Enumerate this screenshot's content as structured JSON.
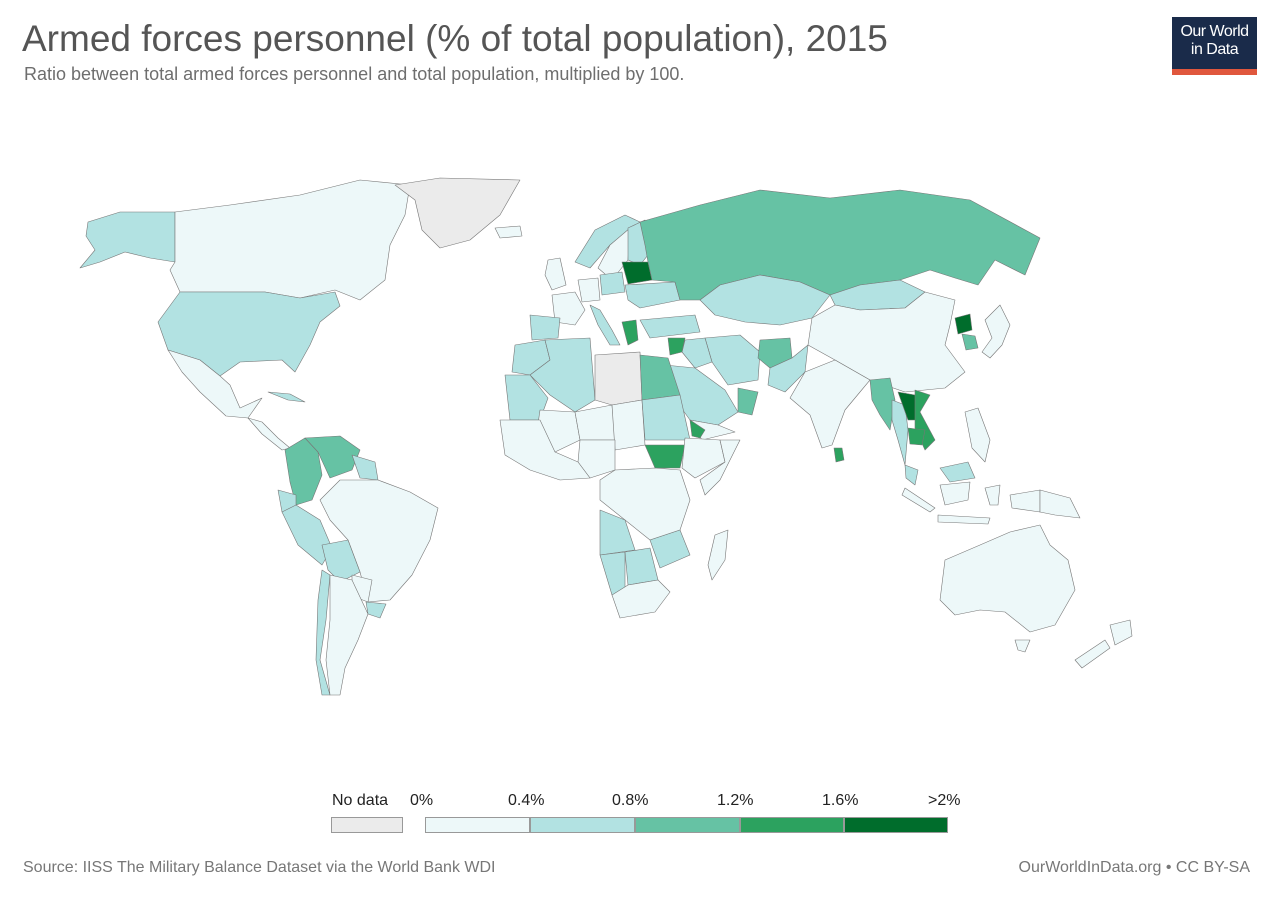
{
  "header": {
    "title": "Armed forces personnel (% of total population), 2015",
    "subtitle": "Ratio between total armed forces personnel and total population, multiplied by 100."
  },
  "logo": {
    "line1": "Our World",
    "line2": "in Data"
  },
  "colors": {
    "no_data": "#ebebeb",
    "bin_0": "#edf8f9",
    "bin_1": "#b2e2e2",
    "bin_2": "#66c2a4",
    "bin_3": "#2ca25f",
    "bin_4": "#006d2c",
    "border": "#777777",
    "accent": "#e0573d",
    "brand": "#1a2b4a"
  },
  "legend": {
    "no_data_label": "No data",
    "ticks": [
      "0%",
      "0.4%",
      "0.8%",
      "1.2%",
      "1.6%",
      ">2%"
    ]
  },
  "chart_data": {
    "type": "choropleth",
    "title": "Armed forces personnel (% of total population), 2015",
    "bins": [
      {
        "from": 0,
        "to": 0.4
      },
      {
        "from": 0.4,
        "to": 0.8
      },
      {
        "from": 0.8,
        "to": 1.2
      },
      {
        "from": 1.2,
        "to": 1.6
      },
      {
        "from": 1.6,
        "to": 2
      }
    ],
    "regions": [
      {
        "name": "Canada",
        "bin": 0
      },
      {
        "name": "Alaska",
        "bin": 1
      },
      {
        "name": "United States",
        "bin": 1
      },
      {
        "name": "Mexico",
        "bin": 0
      },
      {
        "name": "Cuba",
        "bin": 1
      },
      {
        "name": "Central America",
        "bin": 0
      },
      {
        "name": "Colombia",
        "bin": 2
      },
      {
        "name": "Venezuela",
        "bin": 2
      },
      {
        "name": "Guyana",
        "bin": 1
      },
      {
        "name": "Ecuador",
        "bin": 1
      },
      {
        "name": "Peru",
        "bin": 1
      },
      {
        "name": "Bolivia",
        "bin": 1
      },
      {
        "name": "Brazil",
        "bin": 0
      },
      {
        "name": "Paraguay",
        "bin": 0
      },
      {
        "name": "Uruguay",
        "bin": 1
      },
      {
        "name": "Chile",
        "bin": 1
      },
      {
        "name": "Argentina",
        "bin": 0
      },
      {
        "name": "Greenland",
        "bin": null
      },
      {
        "name": "Iceland",
        "bin": 0
      },
      {
        "name": "Norway",
        "bin": 1
      },
      {
        "name": "Sweden",
        "bin": 0
      },
      {
        "name": "Finland",
        "bin": 1
      },
      {
        "name": "United Kingdom",
        "bin": 0
      },
      {
        "name": "Spain",
        "bin": 1
      },
      {
        "name": "France",
        "bin": 0
      },
      {
        "name": "Germany",
        "bin": 0
      },
      {
        "name": "Poland",
        "bin": 1
      },
      {
        "name": "Belarus",
        "bin": 4
      },
      {
        "name": "Ukraine",
        "bin": 1
      },
      {
        "name": "Italy",
        "bin": 1
      },
      {
        "name": "Greece",
        "bin": 3
      },
      {
        "name": "Turkey",
        "bin": 1
      },
      {
        "name": "Russia",
        "bin": 2
      },
      {
        "name": "Kazakhstan",
        "bin": 1
      },
      {
        "name": "Mongolia",
        "bin": 1
      },
      {
        "name": "China",
        "bin": 0
      },
      {
        "name": "North Korea",
        "bin": 4
      },
      {
        "name": "South Korea",
        "bin": 2
      },
      {
        "name": "Japan",
        "bin": 0
      },
      {
        "name": "Iran",
        "bin": 1
      },
      {
        "name": "Iraq",
        "bin": 1
      },
      {
        "name": "Syria",
        "bin": 3
      },
      {
        "name": "Saudi Arabia",
        "bin": 1
      },
      {
        "name": "Oman",
        "bin": 2
      },
      {
        "name": "Yemen",
        "bin": 0
      },
      {
        "name": "Afghanistan",
        "bin": 2
      },
      {
        "name": "Pakistan",
        "bin": 1
      },
      {
        "name": "India",
        "bin": 0
      },
      {
        "name": "Sri Lanka",
        "bin": 3
      },
      {
        "name": "Myanmar",
        "bin": 2
      },
      {
        "name": "Thailand",
        "bin": 1
      },
      {
        "name": "Laos",
        "bin": 4
      },
      {
        "name": "Vietnam",
        "bin": 3
      },
      {
        "name": "Cambodia",
        "bin": 3
      },
      {
        "name": "Malaysia",
        "bin": 1
      },
      {
        "name": "Indonesia",
        "bin": 0
      },
      {
        "name": "Philippines",
        "bin": 0
      },
      {
        "name": "Papua New Guinea",
        "bin": 0
      },
      {
        "name": "Australia",
        "bin": 0
      },
      {
        "name": "New Zealand",
        "bin": 0
      },
      {
        "name": "Morocco",
        "bin": 1
      },
      {
        "name": "Algeria",
        "bin": 1
      },
      {
        "name": "Libya",
        "bin": null
      },
      {
        "name": "Egypt",
        "bin": 2
      },
      {
        "name": "Sudan",
        "bin": 1
      },
      {
        "name": "South Sudan",
        "bin": 3
      },
      {
        "name": "Eritrea",
        "bin": 3
      },
      {
        "name": "Ethiopia",
        "bin": 0
      },
      {
        "name": "Somalia",
        "bin": 0
      },
      {
        "name": "Mauritania",
        "bin": 1
      },
      {
        "name": "Mali",
        "bin": 0
      },
      {
        "name": "Niger",
        "bin": 0
      },
      {
        "name": "Chad",
        "bin": 0
      },
      {
        "name": "Nigeria",
        "bin": 0
      },
      {
        "name": "Angola",
        "bin": 1
      },
      {
        "name": "Namibia",
        "bin": 1
      },
      {
        "name": "Botswana",
        "bin": 1
      },
      {
        "name": "Zimbabwe",
        "bin": 1
      },
      {
        "name": "DR Congo",
        "bin": 0
      },
      {
        "name": "South Africa",
        "bin": 0
      },
      {
        "name": "Madagascar",
        "bin": 0
      }
    ]
  },
  "footer": {
    "source": "Source: IISS The Military Balance Dataset via the World Bank WDI",
    "license": "OurWorldInData.org • CC BY-SA"
  }
}
